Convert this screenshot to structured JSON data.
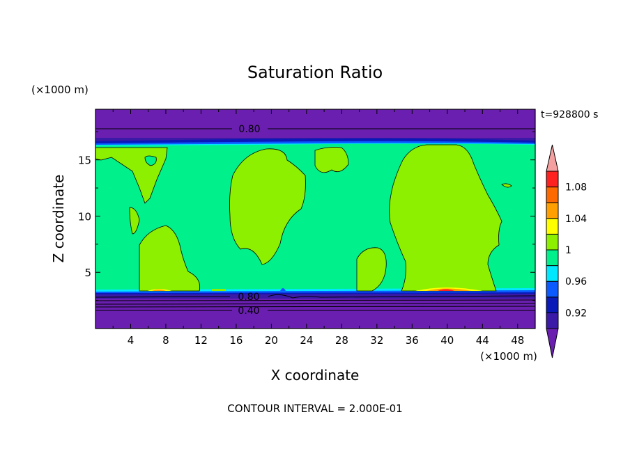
{
  "chart_data": {
    "type": "heatmap",
    "title": "Saturation Ratio",
    "xlabel": "X coordinate",
    "ylabel": "Z coordinate",
    "x_unit": "(×1000 m)",
    "y_unit": "(×1000 m)",
    "time_label": "t=928800 s",
    "footer": "CONTOUR INTERVAL = 2.000E-01",
    "xlim": [
      0,
      50
    ],
    "ylim": [
      0,
      19.5
    ],
    "x_ticks": [
      "4",
      "8",
      "12",
      "16",
      "20",
      "24",
      "28",
      "32",
      "36",
      "40",
      "44",
      "48"
    ],
    "y_ticks": [
      "5",
      "10",
      "15"
    ],
    "contour_labels": [
      "0.80",
      "0.80",
      "0.40"
    ],
    "colorbar": {
      "tick_labels": [
        "1.08",
        "1.04",
        "1",
        "0.96",
        "0.92"
      ],
      "levels": [
        {
          "range": "<0.90",
          "color": "#6a1fb0"
        },
        {
          "range": "0.90-0.92",
          "color": "#3a1aa6"
        },
        {
          "range": "0.92-0.94",
          "color": "#0a1ab8"
        },
        {
          "range": "0.94-0.96",
          "color": "#0a5aff"
        },
        {
          "range": "0.96-0.98",
          "color": "#00e8ff"
        },
        {
          "range": "0.98-1.00",
          "color": "#00f08c"
        },
        {
          "range": "1.00-1.02",
          "color": "#8cf000"
        },
        {
          "range": "1.02-1.04",
          "color": "#ffff00"
        },
        {
          "range": "1.04-1.06",
          "color": "#ffa000"
        },
        {
          "range": "1.06-1.08",
          "color": "#ff6a00"
        },
        {
          "range": "1.08-1.10",
          "color": "#ff2020"
        },
        {
          "range": ">1.10",
          "color": "#f4a0a0"
        }
      ]
    },
    "regions": [
      {
        "name": "upper-dry-layer",
        "z_range": [
          16.8,
          19.5
        ],
        "value": "<0.90"
      },
      {
        "name": "cloud-layer",
        "z_range": [
          3.4,
          16.8
        ],
        "value": "0.98-1.00"
      },
      {
        "name": "lower-dry-layer",
        "z_range": [
          0,
          3.2
        ],
        "value": "<0.90"
      },
      {
        "name": "supersaturated-patches",
        "value": "1.00-1.02"
      }
    ]
  }
}
